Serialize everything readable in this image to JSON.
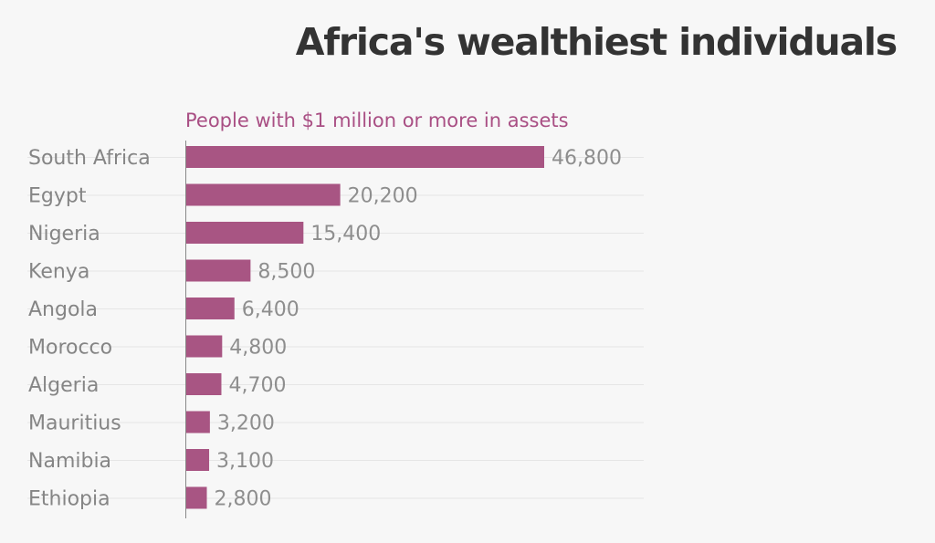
{
  "colors": {
    "bar": "#a85583",
    "subtitle": "#a94f84",
    "title": "#333333",
    "label": "#858585",
    "value_label": "#8e8e8e",
    "background": "#f7f7f7"
  },
  "chart_data": {
    "type": "bar",
    "orientation": "horizontal",
    "title": "Africa's wealthiest individuals",
    "subtitle": "People with $1 million or more in assets",
    "categories": [
      "South Africa",
      "Egypt",
      "Nigeria",
      "Kenya",
      "Angola",
      "Morocco",
      "Algeria",
      "Mauritius",
      "Namibia",
      "Ethiopia"
    ],
    "values": [
      46800,
      20200,
      15400,
      8500,
      6400,
      4800,
      4700,
      3200,
      3100,
      2800
    ],
    "value_labels": [
      "46,800",
      "20,200",
      "15,400",
      "8,500",
      "6,400",
      "4,800",
      "4,700",
      "3,200",
      "3,100",
      "2,800"
    ],
    "xlim": [
      0,
      46800
    ],
    "grid": true,
    "legend": "none"
  }
}
